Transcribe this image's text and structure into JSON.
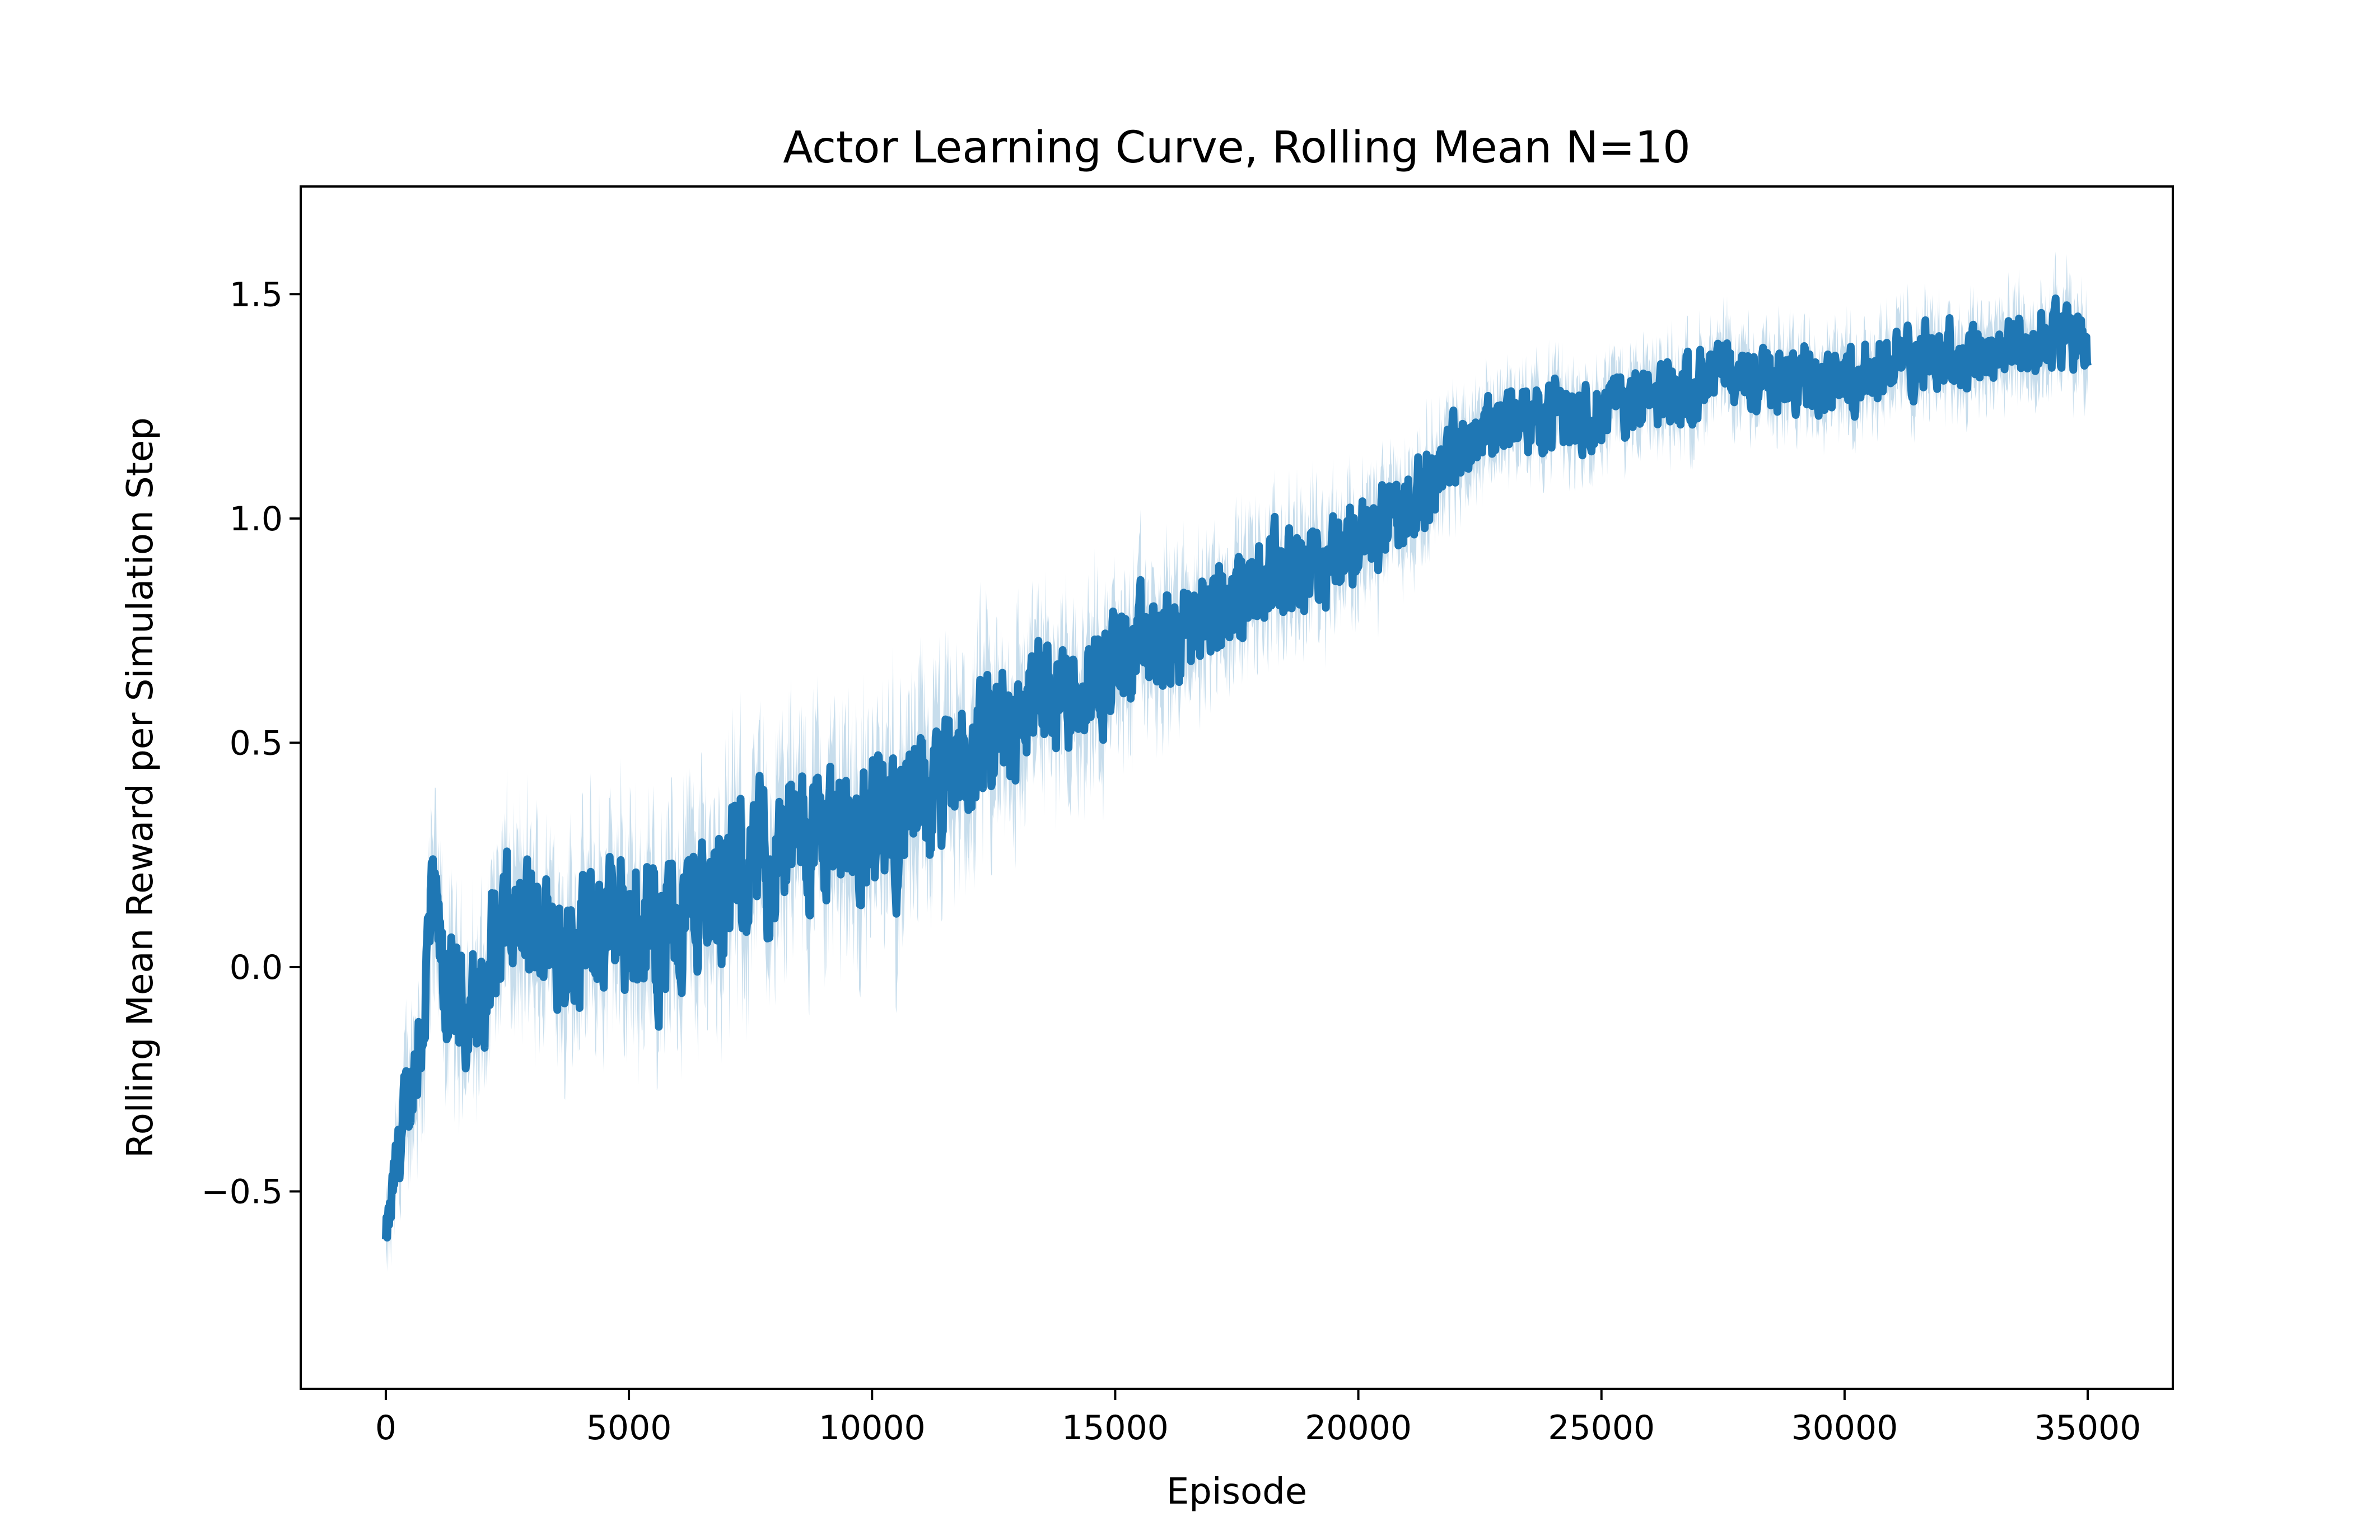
{
  "chart_data": {
    "type": "line",
    "title": "Actor Learning Curve, Rolling Mean N=10",
    "xlabel": "Episode",
    "ylabel": "Rolling Mean Reward per Simulation Step",
    "xlim": [
      -1750,
      36750
    ],
    "ylim": [
      -0.94,
      1.74
    ],
    "xticks": [
      0,
      5000,
      10000,
      15000,
      20000,
      25000,
      30000,
      35000
    ],
    "xtick_labels": [
      "0",
      "5000",
      "10000",
      "15000",
      "20000",
      "25000",
      "30000",
      "35000"
    ],
    "yticks": [
      -0.5,
      0.0,
      0.5,
      1.0,
      1.5
    ],
    "ytick_labels": [
      "−0.5",
      "0.0",
      "0.5",
      "1.0",
      "1.5"
    ],
    "grid": false,
    "series": [
      {
        "color": "#1f77b4",
        "x": [
          0,
          100,
          250,
          500,
          750,
          900,
          1000,
          1200,
          1500,
          2000,
          2200,
          2500,
          3000,
          3500,
          4000,
          4500,
          5000,
          5500,
          6000,
          6500,
          7000,
          7500,
          8000,
          8500,
          9000,
          9500,
          10000,
          10500,
          11000,
          11500,
          12000,
          12500,
          13000,
          13500,
          14000,
          14500,
          15000,
          15500,
          16000,
          16500,
          17000,
          17500,
          18000,
          18500,
          19000,
          19500,
          20000,
          20500,
          21000,
          21500,
          22000,
          22500,
          23000,
          23500,
          24000,
          24500,
          25000,
          25500,
          26000,
          26500,
          27000,
          27500,
          28000,
          28500,
          29000,
          29500,
          30000,
          30500,
          31000,
          31500,
          32000,
          32500,
          33000,
          33500,
          34000,
          34500,
          35000
        ],
        "y": [
          -0.62,
          -0.55,
          -0.42,
          -0.28,
          -0.12,
          0.05,
          0.12,
          -0.05,
          -0.1,
          -0.08,
          0.05,
          0.1,
          0.08,
          0.07,
          0.06,
          0.08,
          0.1,
          0.08,
          0.12,
          0.15,
          0.18,
          0.22,
          0.25,
          0.28,
          0.3,
          0.32,
          0.3,
          0.33,
          0.35,
          0.4,
          0.45,
          0.5,
          0.55,
          0.6,
          0.62,
          0.65,
          0.68,
          0.7,
          0.72,
          0.75,
          0.8,
          0.82,
          0.85,
          0.88,
          0.9,
          0.93,
          0.95,
          0.97,
          1.02,
          1.1,
          1.15,
          1.2,
          1.22,
          1.22,
          1.24,
          1.23,
          1.25,
          1.26,
          1.27,
          1.28,
          1.3,
          1.31,
          1.31,
          1.32,
          1.3,
          1.33,
          1.32,
          1.33,
          1.35,
          1.36,
          1.37,
          1.36,
          1.38,
          1.38,
          1.39,
          1.4,
          1.4
        ],
        "spread": [
          0.08,
          0.1,
          0.12,
          0.15,
          0.18,
          0.22,
          0.2,
          0.18,
          0.18,
          0.17,
          0.2,
          0.2,
          0.2,
          0.2,
          0.2,
          0.2,
          0.22,
          0.22,
          0.22,
          0.22,
          0.22,
          0.22,
          0.22,
          0.22,
          0.22,
          0.22,
          0.22,
          0.22,
          0.22,
          0.2,
          0.2,
          0.2,
          0.2,
          0.18,
          0.18,
          0.18,
          0.16,
          0.16,
          0.16,
          0.16,
          0.15,
          0.15,
          0.14,
          0.14,
          0.14,
          0.13,
          0.13,
          0.13,
          0.12,
          0.12,
          0.11,
          0.11,
          0.1,
          0.1,
          0.1,
          0.1,
          0.1,
          0.1,
          0.1,
          0.1,
          0.1,
          0.1,
          0.1,
          0.1,
          0.1,
          0.1,
          0.1,
          0.1,
          0.1,
          0.1,
          0.1,
          0.1,
          0.1,
          0.1,
          0.1,
          0.1,
          0.1
        ]
      }
    ]
  }
}
